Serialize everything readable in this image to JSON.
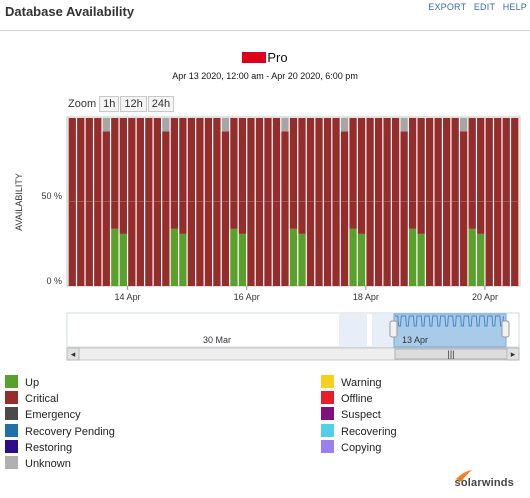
{
  "header": {
    "title": "Database Availability",
    "actions": [
      "EXPORT",
      "EDIT",
      "HELP"
    ]
  },
  "chart_header": {
    "title_suffix": "Pro",
    "subtitle": "Apr 13 2020, 12:00 am - Apr 20 2020, 6:00 pm"
  },
  "zoom": {
    "label": "Zoom",
    "buttons": [
      "1h",
      "12h",
      "24h"
    ]
  },
  "chart_data": {
    "type": "bar",
    "stacked": true,
    "title": "Pro",
    "subtitle": "Apr 13 2020, 12:00 am - Apr 20 2020, 6:00 pm",
    "ylabel": "AVAILABILITY",
    "ylim": [
      0,
      100
    ],
    "yticks": [
      "0 %",
      "50 %"
    ],
    "xticks": [
      "14 Apr",
      "16 Apr",
      "18 Apr",
      "20 Apr"
    ],
    "grid": true,
    "series": [
      {
        "name": "Up",
        "color": "#5aa02c"
      },
      {
        "name": "Critical",
        "color": "#962d2d"
      },
      {
        "name": "Unknown",
        "color": "#a6a6a6"
      }
    ],
    "day_pattern": [
      {
        "up": 0,
        "unknown": 0
      },
      {
        "up": 0,
        "unknown": 0
      },
      {
        "up": 0,
        "unknown": 0
      },
      {
        "up": 0,
        "unknown": 0
      },
      {
        "up": 0,
        "unknown": 8
      },
      {
        "up": 34,
        "unknown": 0
      },
      {
        "up": 31,
        "unknown": 0
      }
    ],
    "days": 7,
    "trailing_bars": 4
  },
  "navigator": {
    "label": "30 Mar",
    "selected_label": "13 Apr",
    "scroll_left": "◂",
    "scroll_right": "▸",
    "scroll_grip": "|||"
  },
  "legend": {
    "left": [
      {
        "label": "Up",
        "color": "#5aa02c"
      },
      {
        "label": "Critical",
        "color": "#962d2d"
      },
      {
        "label": "Emergency",
        "color": "#4a4a4a"
      },
      {
        "label": "Recovery Pending",
        "color": "#1f6fa8"
      },
      {
        "label": "Restoring",
        "color": "#2a0e8a"
      },
      {
        "label": "Unknown",
        "color": "#b0b0b0"
      }
    ],
    "right": [
      {
        "label": "Warning",
        "color": "#f2d21f"
      },
      {
        "label": "Offline",
        "color": "#e61e2a"
      },
      {
        "label": "Suspect",
        "color": "#7e1180"
      },
      {
        "label": "Recovering",
        "color": "#4fd0e8"
      },
      {
        "label": "Copying",
        "color": "#9a7ff0"
      }
    ]
  },
  "branding": {
    "logo_text": "solarwinds"
  }
}
